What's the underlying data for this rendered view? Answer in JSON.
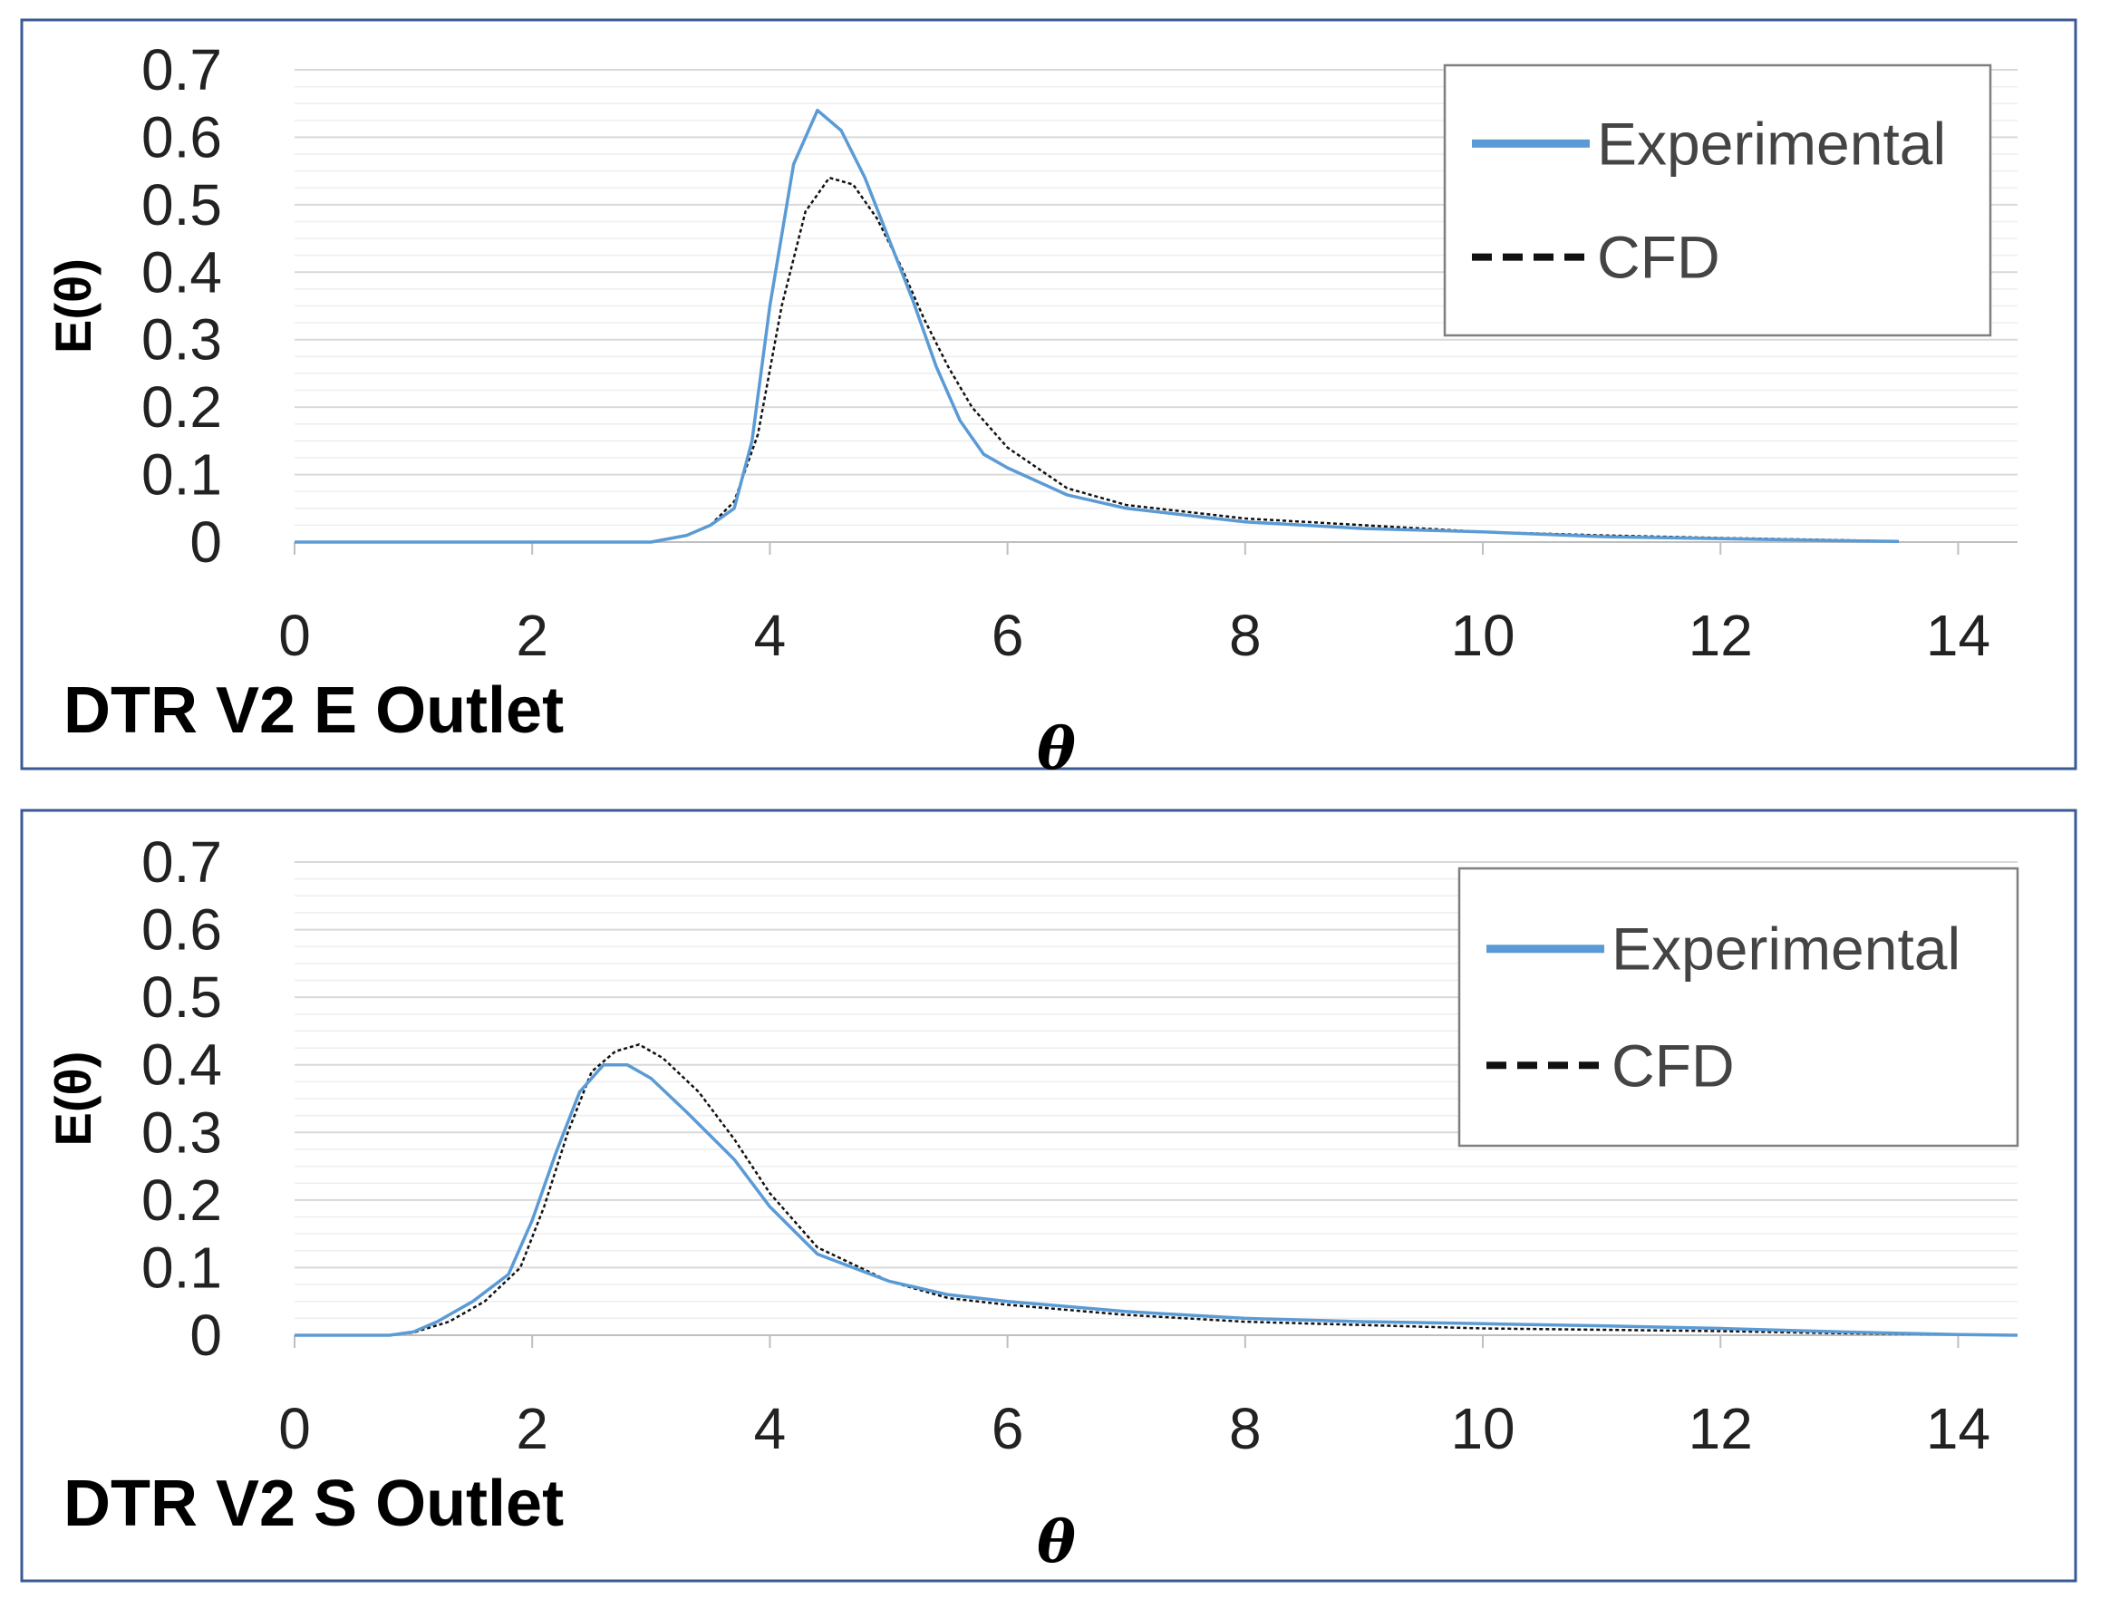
{
  "chart_data": [
    {
      "type": "line",
      "title": "DTR V2 E Outlet",
      "xlabel": "θ",
      "ylabel": "E(θ)",
      "xlim": [
        0,
        14.5
      ],
      "ylim": [
        0,
        0.7
      ],
      "xticks": [
        "0",
        "2",
        "4",
        "6",
        "8",
        "10",
        "12",
        "14"
      ],
      "yticks": [
        "0",
        "0.1",
        "0.2",
        "0.3",
        "0.4",
        "0.5",
        "0.6",
        "0.7"
      ],
      "grid": true,
      "legend": "top-right",
      "series": [
        {
          "name": "Experimental",
          "color": "#5b9bd5",
          "style": "solid",
          "points": [
            [
              0,
              0
            ],
            [
              3,
              0
            ],
            [
              3.3,
              0.01
            ],
            [
              3.5,
              0.025
            ],
            [
              3.7,
              0.05
            ],
            [
              3.85,
              0.15
            ],
            [
              4.0,
              0.35
            ],
            [
              4.2,
              0.56
            ],
            [
              4.4,
              0.64
            ],
            [
              4.6,
              0.61
            ],
            [
              4.8,
              0.54
            ],
            [
              5.0,
              0.45
            ],
            [
              5.2,
              0.36
            ],
            [
              5.4,
              0.26
            ],
            [
              5.6,
              0.18
            ],
            [
              5.8,
              0.13
            ],
            [
              6.0,
              0.11
            ],
            [
              6.5,
              0.07
            ],
            [
              7,
              0.05
            ],
            [
              8,
              0.03
            ],
            [
              9,
              0.02
            ],
            [
              10,
              0.015
            ],
            [
              11,
              0.008
            ],
            [
              12,
              0.005
            ],
            [
              13,
              0.002
            ],
            [
              13.5,
              0.001
            ]
          ]
        },
        {
          "name": "CFD",
          "color": "#111111",
          "style": "dashed",
          "points": [
            [
              0,
              0
            ],
            [
              3,
              0
            ],
            [
              3.3,
              0.01
            ],
            [
              3.5,
              0.025
            ],
            [
              3.7,
              0.06
            ],
            [
              3.9,
              0.16
            ],
            [
              4.1,
              0.35
            ],
            [
              4.3,
              0.49
            ],
            [
              4.5,
              0.54
            ],
            [
              4.7,
              0.53
            ],
            [
              4.9,
              0.48
            ],
            [
              5.1,
              0.41
            ],
            [
              5.3,
              0.33
            ],
            [
              5.5,
              0.26
            ],
            [
              5.7,
              0.2
            ],
            [
              6.0,
              0.14
            ],
            [
              6.5,
              0.08
            ],
            [
              7,
              0.055
            ],
            [
              8,
              0.035
            ],
            [
              9,
              0.025
            ],
            [
              10,
              0.015
            ],
            [
              11,
              0.01
            ],
            [
              12,
              0.006
            ],
            [
              13,
              0.003
            ],
            [
              13.5,
              0.001
            ]
          ]
        }
      ]
    },
    {
      "type": "line",
      "title": "DTR V2 S Outlet",
      "xlabel": "θ",
      "ylabel": "E(θ)",
      "xlim": [
        0,
        14.5
      ],
      "ylim": [
        0,
        0.7
      ],
      "xticks": [
        "0",
        "2",
        "4",
        "6",
        "8",
        "10",
        "12",
        "14"
      ],
      "yticks": [
        "0",
        "0.1",
        "0.2",
        "0.3",
        "0.4",
        "0.5",
        "0.6",
        "0.7"
      ],
      "grid": true,
      "legend": "top-right",
      "series": [
        {
          "name": "Experimental",
          "color": "#5b9bd5",
          "style": "solid",
          "points": [
            [
              0,
              0
            ],
            [
              0.8,
              0
            ],
            [
              1.0,
              0.005
            ],
            [
              1.2,
              0.02
            ],
            [
              1.5,
              0.05
            ],
            [
              1.8,
              0.09
            ],
            [
              2.0,
              0.17
            ],
            [
              2.2,
              0.27
            ],
            [
              2.4,
              0.36
            ],
            [
              2.6,
              0.4
            ],
            [
              2.8,
              0.4
            ],
            [
              3.0,
              0.38
            ],
            [
              3.3,
              0.33
            ],
            [
              3.7,
              0.26
            ],
            [
              4.0,
              0.19
            ],
            [
              4.4,
              0.12
            ],
            [
              5.0,
              0.08
            ],
            [
              5.5,
              0.06
            ],
            [
              6,
              0.05
            ],
            [
              7,
              0.035
            ],
            [
              8,
              0.025
            ],
            [
              9,
              0.02
            ],
            [
              10,
              0.017
            ],
            [
              11,
              0.014
            ],
            [
              12,
              0.01
            ],
            [
              13,
              0.005
            ],
            [
              14,
              0.001
            ],
            [
              14.5,
              0.0
            ]
          ]
        },
        {
          "name": "CFD",
          "color": "#111111",
          "style": "dashed",
          "points": [
            [
              0,
              0
            ],
            [
              0.8,
              0
            ],
            [
              1.0,
              0.004
            ],
            [
              1.3,
              0.02
            ],
            [
              1.6,
              0.05
            ],
            [
              1.9,
              0.1
            ],
            [
              2.1,
              0.19
            ],
            [
              2.3,
              0.3
            ],
            [
              2.5,
              0.39
            ],
            [
              2.7,
              0.42
            ],
            [
              2.9,
              0.43
            ],
            [
              3.1,
              0.41
            ],
            [
              3.4,
              0.36
            ],
            [
              3.7,
              0.29
            ],
            [
              4.0,
              0.21
            ],
            [
              4.4,
              0.13
            ],
            [
              5.0,
              0.08
            ],
            [
              5.5,
              0.055
            ],
            [
              6,
              0.045
            ],
            [
              7,
              0.03
            ],
            [
              8,
              0.02
            ],
            [
              9,
              0.015
            ],
            [
              10,
              0.01
            ],
            [
              11,
              0.008
            ],
            [
              12,
              0.006
            ],
            [
              13,
              0.003
            ],
            [
              14,
              0.001
            ],
            [
              14.5,
              0.0
            ]
          ]
        }
      ]
    }
  ]
}
